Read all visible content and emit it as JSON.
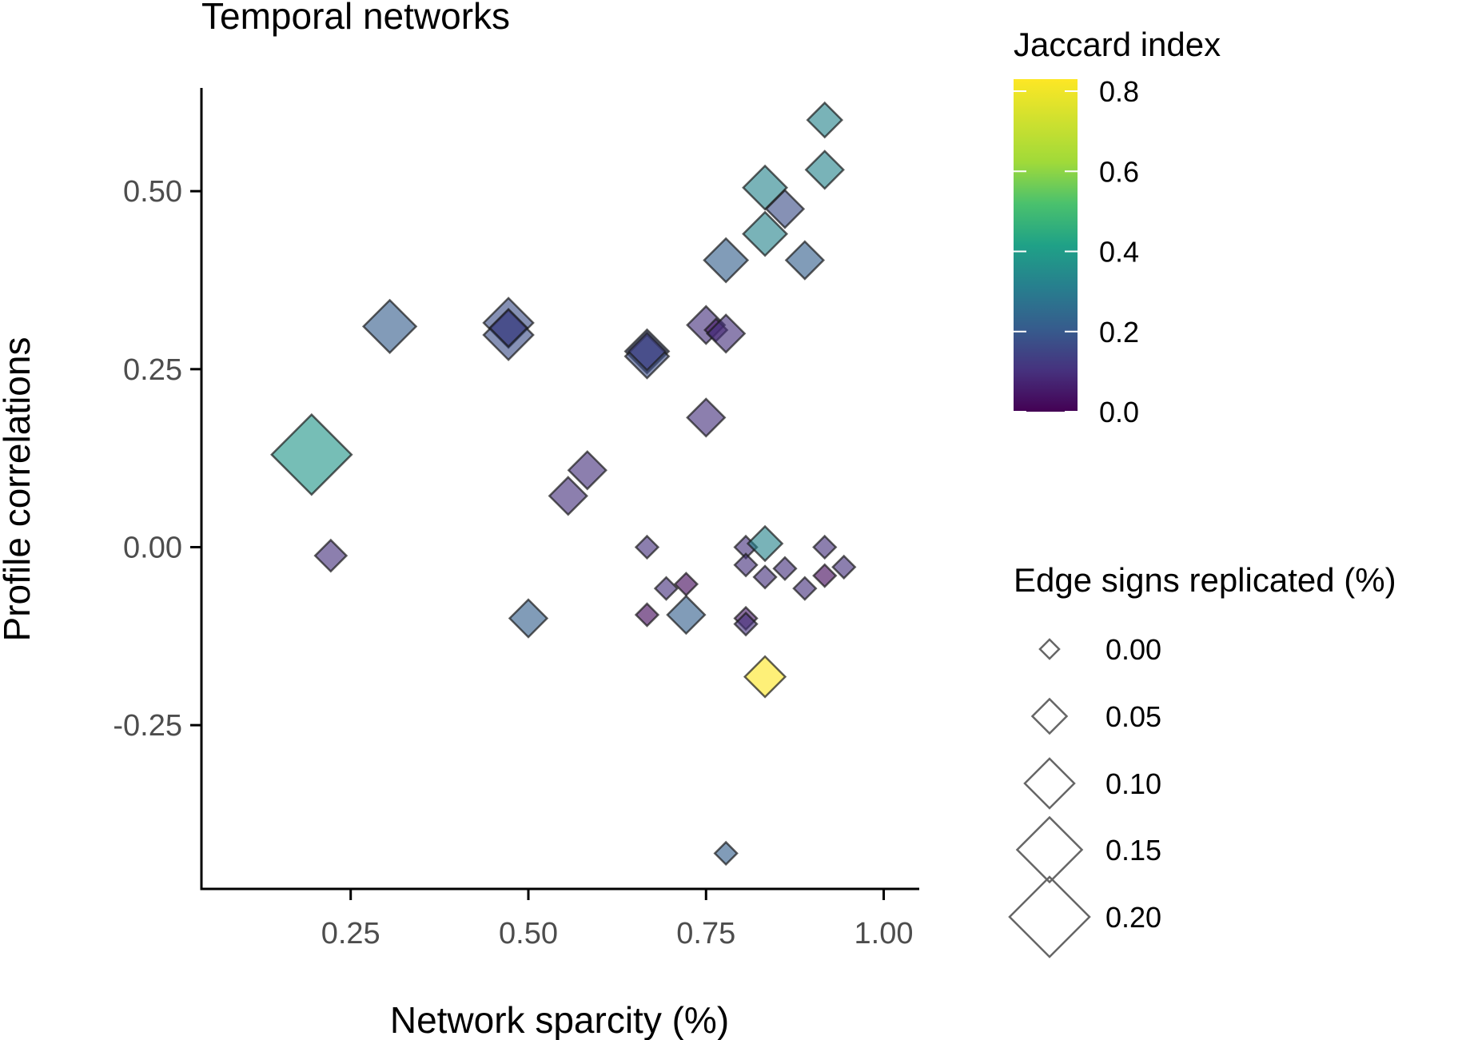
{
  "chart_data": {
    "type": "scatter",
    "marker": "diamond",
    "title": "Temporal networks",
    "xlabel": "Network sparcity (%)",
    "ylabel": "Profile correlations",
    "xlim": [
      0.04,
      1.05
    ],
    "ylim": [
      -0.48,
      0.645
    ],
    "xticks": [
      0.25,
      0.5,
      0.75,
      1.0
    ],
    "xtick_labels": [
      "0.25",
      "0.50",
      "0.75",
      "1.00"
    ],
    "yticks": [
      -0.25,
      0.0,
      0.25,
      0.5
    ],
    "ytick_labels": [
      "-0.25",
      "0.00",
      "0.25",
      "0.50"
    ],
    "grid": false,
    "color_scale": {
      "name": "Jaccard index",
      "palette": "viridis",
      "range": [
        0.0,
        0.83
      ],
      "ticks": [
        0.0,
        0.2,
        0.4,
        0.6,
        0.8
      ],
      "tick_labels": [
        "0.0",
        "0.2",
        "0.4",
        "0.6",
        "0.8"
      ],
      "legend_position": "top-right"
    },
    "size_scale": {
      "name": "Edge signs replicated (%)",
      "values": [
        0.0,
        0.05,
        0.1,
        0.15,
        0.2
      ],
      "labels": [
        "0.00",
        "0.05",
        "0.10",
        "0.15",
        "0.20"
      ],
      "legend_position": "right"
    },
    "points": [
      {
        "x": 0.195,
        "y": 0.13,
        "size": 0.2,
        "color": 0.38
      },
      {
        "x": 0.222,
        "y": -0.012,
        "size": 0.04,
        "color": 0.1
      },
      {
        "x": 0.305,
        "y": 0.31,
        "size": 0.11,
        "color": 0.21
      },
      {
        "x": 0.472,
        "y": 0.315,
        "size": 0.1,
        "color": 0.17
      },
      {
        "x": 0.472,
        "y": 0.298,
        "size": 0.1,
        "color": 0.17
      },
      {
        "x": 0.472,
        "y": 0.308,
        "size": 0.06,
        "color": 0.14
      },
      {
        "x": 0.5,
        "y": -0.1,
        "size": 0.06,
        "color": 0.22
      },
      {
        "x": 0.556,
        "y": 0.072,
        "size": 0.06,
        "color": 0.1
      },
      {
        "x": 0.583,
        "y": 0.108,
        "size": 0.06,
        "color": 0.1
      },
      {
        "x": 0.667,
        "y": 0.275,
        "size": 0.08,
        "color": 0.17
      },
      {
        "x": 0.667,
        "y": 0.268,
        "size": 0.08,
        "color": 0.17
      },
      {
        "x": 0.667,
        "y": 0.275,
        "size": 0.06,
        "color": 0.14
      },
      {
        "x": 0.667,
        "y": 0.0,
        "size": 0.01,
        "color": 0.1
      },
      {
        "x": 0.667,
        "y": -0.095,
        "size": 0.01,
        "color": 0.02
      },
      {
        "x": 0.694,
        "y": -0.058,
        "size": 0.01,
        "color": 0.1
      },
      {
        "x": 0.722,
        "y": -0.052,
        "size": 0.01,
        "color": 0.02
      },
      {
        "x": 0.722,
        "y": -0.095,
        "size": 0.06,
        "color": 0.22
      },
      {
        "x": 0.75,
        "y": 0.312,
        "size": 0.06,
        "color": 0.1
      },
      {
        "x": 0.75,
        "y": 0.182,
        "size": 0.06,
        "color": 0.1
      },
      {
        "x": 0.764,
        "y": 0.305,
        "size": 0.01,
        "color": 0.05
      },
      {
        "x": 0.778,
        "y": 0.3,
        "size": 0.06,
        "color": 0.1
      },
      {
        "x": 0.778,
        "y": 0.403,
        "size": 0.08,
        "color": 0.22
      },
      {
        "x": 0.778,
        "y": -0.43,
        "size": 0.01,
        "color": 0.22
      },
      {
        "x": 0.806,
        "y": 0.0,
        "size": 0.01,
        "color": 0.1
      },
      {
        "x": 0.806,
        "y": -0.025,
        "size": 0.01,
        "color": 0.1
      },
      {
        "x": 0.806,
        "y": -0.1,
        "size": 0.01,
        "color": 0.05
      },
      {
        "x": 0.806,
        "y": -0.108,
        "size": 0.01,
        "color": 0.1
      },
      {
        "x": 0.833,
        "y": 0.505,
        "size": 0.08,
        "color": 0.33
      },
      {
        "x": 0.833,
        "y": 0.44,
        "size": 0.08,
        "color": 0.33
      },
      {
        "x": 0.833,
        "y": 0.005,
        "size": 0.05,
        "color": 0.33
      },
      {
        "x": 0.833,
        "y": -0.042,
        "size": 0.01,
        "color": 0.1
      },
      {
        "x": 0.833,
        "y": -0.182,
        "size": 0.07,
        "color": 0.83
      },
      {
        "x": 0.861,
        "y": 0.475,
        "size": 0.06,
        "color": 0.17
      },
      {
        "x": 0.861,
        "y": -0.03,
        "size": 0.01,
        "color": 0.1
      },
      {
        "x": 0.889,
        "y": 0.403,
        "size": 0.06,
        "color": 0.22
      },
      {
        "x": 0.889,
        "y": -0.058,
        "size": 0.01,
        "color": 0.1
      },
      {
        "x": 0.917,
        "y": 0.6,
        "size": 0.05,
        "color": 0.33
      },
      {
        "x": 0.917,
        "y": 0.53,
        "size": 0.06,
        "color": 0.33
      },
      {
        "x": 0.917,
        "y": 0.0,
        "size": 0.01,
        "color": 0.1
      },
      {
        "x": 0.917,
        "y": -0.04,
        "size": 0.01,
        "color": 0.02
      },
      {
        "x": 0.944,
        "y": -0.028,
        "size": 0.01,
        "color": 0.1
      }
    ]
  }
}
